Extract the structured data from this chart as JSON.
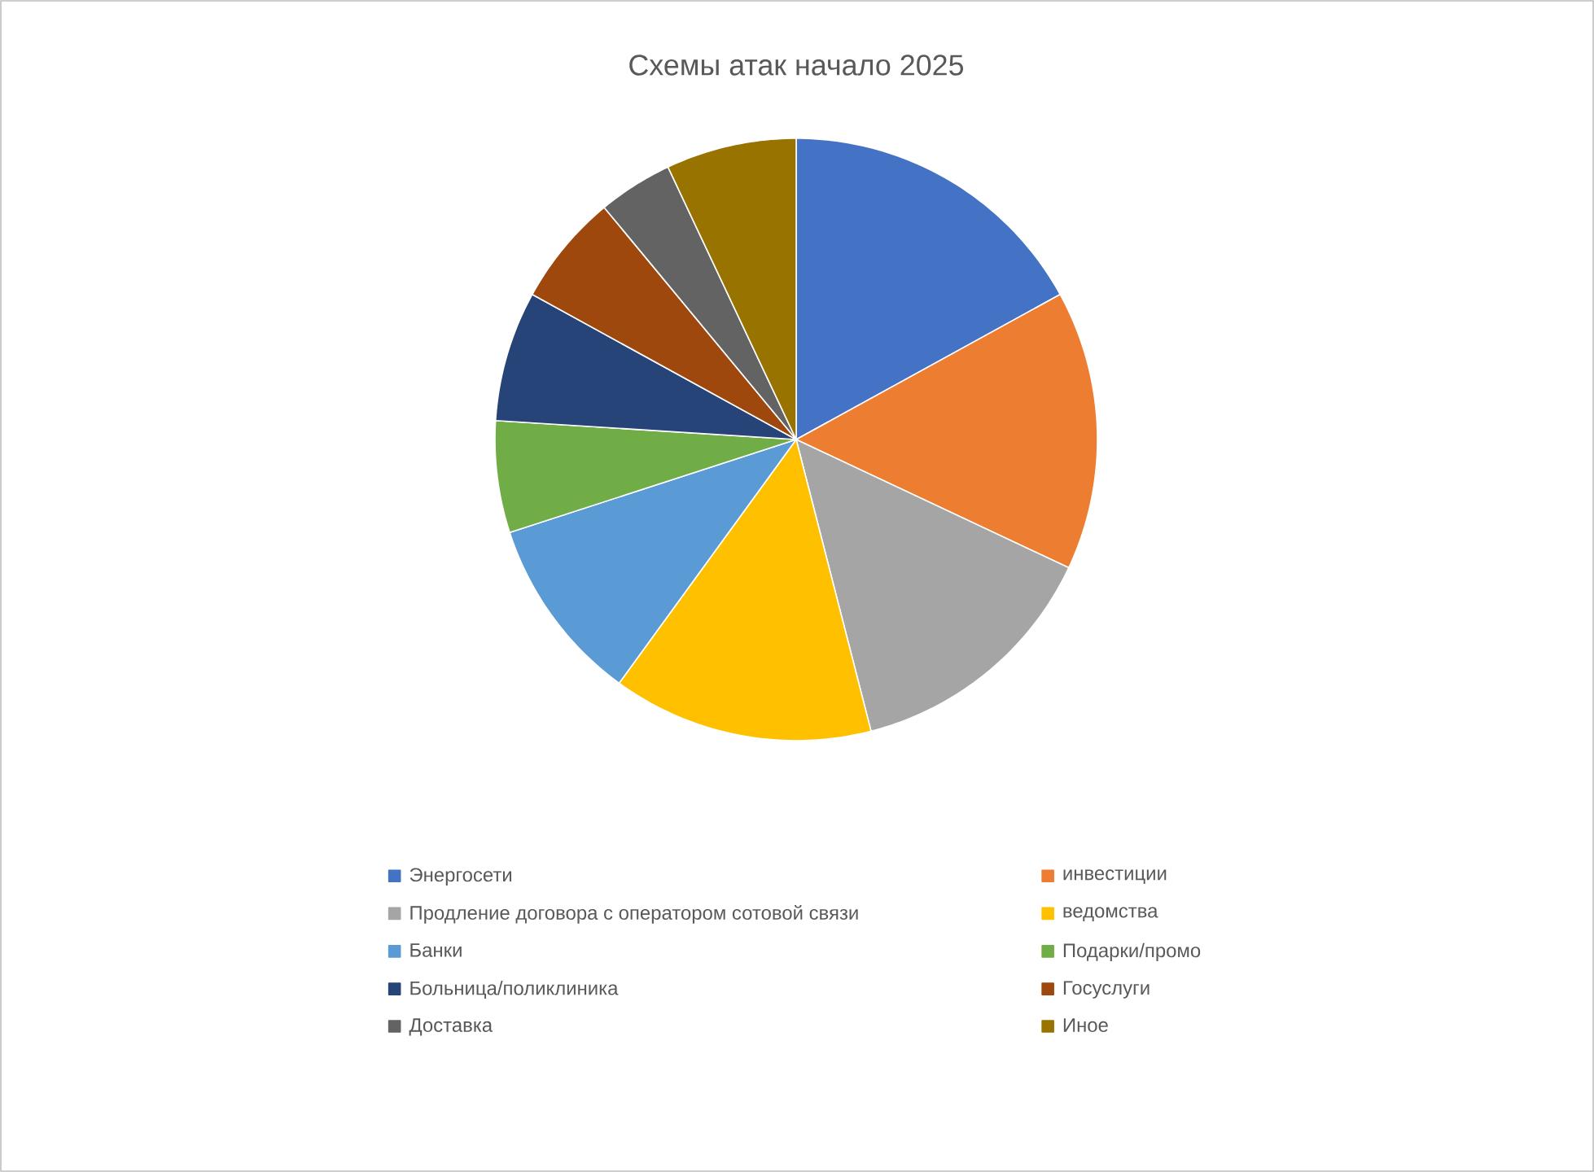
{
  "chart_data": {
    "type": "pie",
    "title": "Схемы атак начало 2025",
    "categories": [
      "Энергосети",
      "инвестиции",
      "Продление договора с оператором сотовой связи",
      "ведомства",
      "Банки",
      "Подарки/промо",
      "Больница/поликлиника",
      "Госуслуги",
      "Доставка",
      "Иное"
    ],
    "values": [
      17,
      15,
      14,
      14,
      10,
      6,
      7,
      6,
      4,
      7
    ],
    "colors": [
      "#4472c4",
      "#ed7d31",
      "#a5a5a5",
      "#ffc000",
      "#5b9bd5",
      "#70ad47",
      "#264478",
      "#9e480e",
      "#636363",
      "#997300"
    ],
    "legend": "bottom"
  }
}
